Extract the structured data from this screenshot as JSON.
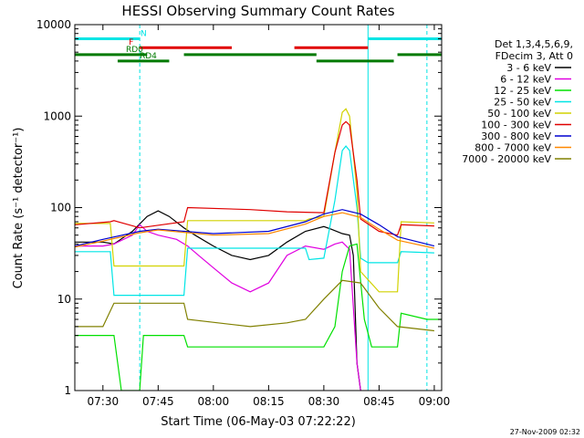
{
  "chart_data": {
    "type": "line",
    "title": "HESSI Observing Summary Count Rates",
    "xlabel": "Start Time (06-May-03 07:22:22)",
    "ylabel": "Count Rate (s⁻¹ detector⁻¹)",
    "y_scale": "log",
    "xlim": [
      "07:22:22",
      "09:02"
    ],
    "ylim": [
      1,
      10000
    ],
    "x_ticks": [
      "07:30",
      "07:45",
      "08:00",
      "08:15",
      "08:30",
      "08:45",
      "09:00"
    ],
    "y_ticks": [
      "1",
      "10",
      "100",
      "1000",
      "10000"
    ],
    "legend_header": [
      "Det 1,3,4,5,6,9,",
      "FDecim 3, Att 0"
    ],
    "legend_position": "right",
    "timestamp": "27-Nov-2009 02:32",
    "vertical_lines": [
      {
        "x": "07:22:22",
        "color": "#00e5e5",
        "style": "solid"
      },
      {
        "x": "07:40",
        "color": "#00e5e5",
        "style": "dashed"
      },
      {
        "x": "08:42",
        "color": "#00e5e5",
        "style": "solid"
      },
      {
        "x": "08:58",
        "color": "#00e5e5",
        "style": "dashed"
      }
    ],
    "flag_bars": [
      {
        "label": "N",
        "color": "#00e5e5",
        "y": 7000,
        "segments": [
          [
            "07:22:22",
            "07:40"
          ],
          [
            "08:42",
            "09:02"
          ]
        ]
      },
      {
        "label": "F",
        "color": "#e00000",
        "y": 5600,
        "segments": [
          [
            "07:40",
            "08:05"
          ],
          [
            "08:22",
            "08:42"
          ]
        ]
      },
      {
        "label": "RD0",
        "color": "#007a00",
        "y": 4700,
        "segments": [
          [
            "07:22:22",
            "07:42"
          ],
          [
            "07:52",
            "08:28"
          ],
          [
            "08:50",
            "09:02"
          ]
        ]
      },
      {
        "label": "RD4",
        "color": "#007a00",
        "y": 4000,
        "segments": [
          [
            "07:34",
            "07:48"
          ],
          [
            "08:28",
            "08:49"
          ]
        ]
      }
    ],
    "series": [
      {
        "name": "3 - 6 keV",
        "color": "#000000",
        "points": [
          [
            "07:22:22",
            42
          ],
          [
            "07:30",
            42
          ],
          [
            "07:33",
            40
          ],
          [
            "07:38",
            55
          ],
          [
            "07:42",
            80
          ],
          [
            "07:45",
            92
          ],
          [
            "07:48",
            80
          ],
          [
            "07:52",
            60
          ],
          [
            "07:55",
            50
          ],
          [
            "08:00",
            38
          ],
          [
            "08:05",
            30
          ],
          [
            "08:10",
            27
          ],
          [
            "08:15",
            30
          ],
          [
            "08:20",
            42
          ],
          [
            "08:25",
            55
          ],
          [
            "08:30",
            62
          ],
          [
            "08:32",
            58
          ],
          [
            "08:35",
            52
          ],
          [
            "08:37",
            50
          ],
          [
            "08:38",
            30
          ],
          [
            "08:39",
            2
          ],
          [
            "08:40",
            1
          ]
        ]
      },
      {
        "name": "6 - 12 keV",
        "color": "#e000e0",
        "points": [
          [
            "07:22:22",
            38
          ],
          [
            "07:30",
            38
          ],
          [
            "07:33",
            40
          ],
          [
            "07:38",
            50
          ],
          [
            "07:40",
            65
          ],
          [
            "07:42",
            55
          ],
          [
            "07:45",
            50
          ],
          [
            "07:50",
            45
          ],
          [
            "07:53",
            38
          ],
          [
            "07:56",
            30
          ],
          [
            "08:00",
            22
          ],
          [
            "08:05",
            15
          ],
          [
            "08:10",
            12
          ],
          [
            "08:15",
            15
          ],
          [
            "08:20",
            30
          ],
          [
            "08:25",
            38
          ],
          [
            "08:30",
            35
          ],
          [
            "08:33",
            40
          ],
          [
            "08:35",
            42
          ],
          [
            "08:37",
            35
          ],
          [
            "08:39",
            2
          ],
          [
            "08:40",
            1
          ]
        ]
      },
      {
        "name": "12 - 25 keV",
        "color": "#00e000",
        "points": [
          [
            "07:22:22",
            4
          ],
          [
            "07:33",
            4
          ],
          [
            "07:35",
            1
          ],
          [
            "07:40",
            1
          ],
          [
            "07:41",
            4
          ],
          [
            "07:52",
            4
          ],
          [
            "07:53",
            3
          ],
          [
            "08:26",
            3
          ],
          [
            "08:30",
            3
          ],
          [
            "08:33",
            5
          ],
          [
            "08:35",
            20
          ],
          [
            "08:37",
            38
          ],
          [
            "08:39",
            40
          ],
          [
            "08:41",
            6
          ],
          [
            "08:43",
            3
          ],
          [
            "08:50",
            3
          ],
          [
            "08:51",
            7
          ],
          [
            "08:58",
            6
          ],
          [
            "09:02",
            6
          ]
        ]
      },
      {
        "name": "25 - 50 keV",
        "color": "#00e5e5",
        "points": [
          [
            "07:22:22",
            33
          ],
          [
            "07:32",
            33
          ],
          [
            "07:33",
            11
          ],
          [
            "07:45",
            11
          ],
          [
            "07:52",
            11
          ],
          [
            "07:53",
            36
          ],
          [
            "08:25",
            36
          ],
          [
            "08:26",
            27
          ],
          [
            "08:30",
            28
          ],
          [
            "08:33",
            120
          ],
          [
            "08:35",
            420
          ],
          [
            "08:36",
            470
          ],
          [
            "08:37",
            420
          ],
          [
            "08:39",
            100
          ],
          [
            "08:40",
            28
          ],
          [
            "08:42",
            25
          ],
          [
            "08:50",
            25
          ],
          [
            "08:51",
            33
          ],
          [
            "09:00",
            32
          ]
        ]
      },
      {
        "name": "50 - 100 keV",
        "color": "#d2d200",
        "points": [
          [
            "07:22:22",
            67
          ],
          [
            "07:32",
            67
          ],
          [
            "07:33",
            23
          ],
          [
            "07:52",
            23
          ],
          [
            "07:53",
            72
          ],
          [
            "08:25",
            72
          ],
          [
            "08:26",
            75
          ],
          [
            "08:30",
            80
          ],
          [
            "08:33",
            400
          ],
          [
            "08:35",
            1100
          ],
          [
            "08:36",
            1200
          ],
          [
            "08:37",
            1000
          ],
          [
            "08:39",
            150
          ],
          [
            "08:40",
            20
          ],
          [
            "08:45",
            12
          ],
          [
            "08:50",
            12
          ],
          [
            "08:51",
            70
          ],
          [
            "09:00",
            68
          ]
        ]
      },
      {
        "name": "100 - 300 keV",
        "color": "#e00000",
        "points": [
          [
            "07:22:22",
            65
          ],
          [
            "07:32",
            70
          ],
          [
            "07:33",
            72
          ],
          [
            "07:40",
            60
          ],
          [
            "07:52",
            70
          ],
          [
            "07:53",
            100
          ],
          [
            "08:10",
            95
          ],
          [
            "08:20",
            90
          ],
          [
            "08:30",
            88
          ],
          [
            "08:33",
            400
          ],
          [
            "08:35",
            800
          ],
          [
            "08:36",
            870
          ],
          [
            "08:37",
            800
          ],
          [
            "08:39",
            200
          ],
          [
            "08:40",
            75
          ],
          [
            "08:45",
            55
          ],
          [
            "08:50",
            50
          ],
          [
            "08:51",
            65
          ],
          [
            "09:00",
            63
          ]
        ]
      },
      {
        "name": "300 - 800 keV",
        "color": "#0000d0",
        "points": [
          [
            "07:22:22",
            38
          ],
          [
            "07:30",
            45
          ],
          [
            "07:40",
            55
          ],
          [
            "07:45",
            58
          ],
          [
            "08:00",
            52
          ],
          [
            "08:15",
            55
          ],
          [
            "08:25",
            70
          ],
          [
            "08:30",
            85
          ],
          [
            "08:35",
            95
          ],
          [
            "08:40",
            85
          ],
          [
            "08:45",
            65
          ],
          [
            "08:50",
            48
          ],
          [
            "09:00",
            38
          ]
        ]
      },
      {
        "name": "800 - 7000 keV",
        "color": "#ff8800",
        "points": [
          [
            "07:22:22",
            37
          ],
          [
            "07:30",
            43
          ],
          [
            "07:40",
            53
          ],
          [
            "07:45",
            57
          ],
          [
            "08:00",
            50
          ],
          [
            "08:15",
            52
          ],
          [
            "08:25",
            66
          ],
          [
            "08:30",
            80
          ],
          [
            "08:35",
            88
          ],
          [
            "08:40",
            78
          ],
          [
            "08:45",
            58
          ],
          [
            "08:50",
            44
          ],
          [
            "09:00",
            36
          ]
        ]
      },
      {
        "name": "7000 - 20000 keV",
        "color": "#808000",
        "points": [
          [
            "07:22:22",
            5
          ],
          [
            "07:30",
            5
          ],
          [
            "07:33",
            9
          ],
          [
            "07:45",
            9
          ],
          [
            "07:52",
            9
          ],
          [
            "07:53",
            6
          ],
          [
            "08:10",
            5
          ],
          [
            "08:20",
            5.5
          ],
          [
            "08:25",
            6
          ],
          [
            "08:30",
            10
          ],
          [
            "08:35",
            16
          ],
          [
            "08:40",
            15
          ],
          [
            "08:45",
            8
          ],
          [
            "08:50",
            5
          ],
          [
            "09:00",
            4.5
          ]
        ]
      }
    ]
  }
}
